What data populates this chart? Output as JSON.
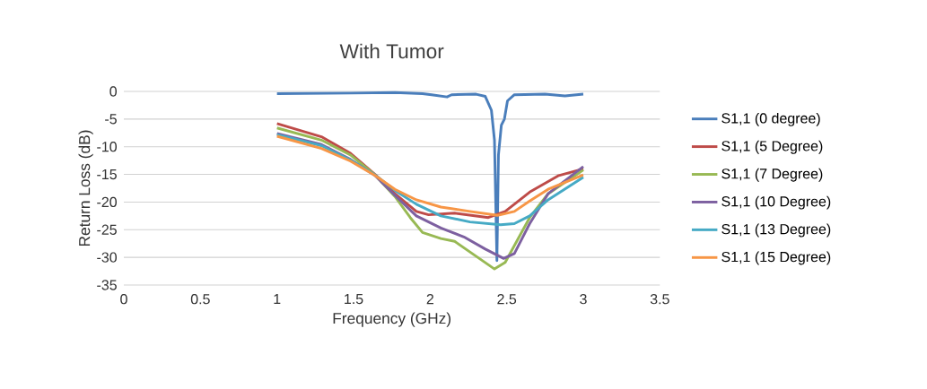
{
  "chart_data": {
    "type": "line",
    "title": "With Tumor",
    "xlabel": "Frequency (GHz)",
    "ylabel": "Return Loss (dB)",
    "xlim": [
      0,
      3.5
    ],
    "xticks": [
      0,
      0.5,
      1,
      1.5,
      2,
      2.5,
      3,
      3.5
    ],
    "ylim": [
      -35,
      0
    ],
    "yticks": [
      0,
      -5,
      -10,
      -15,
      -20,
      -25,
      -30,
      -35
    ],
    "grid": "y",
    "legend": "right",
    "marker": "none",
    "line_style": "solid",
    "series": [
      {
        "name": "S1,1 (0 degree)",
        "color": "#4a7ebb",
        "x": [
          1,
          1.48,
          1.77,
          1.95,
          2.01,
          2.11,
          2.14,
          2.3,
          2.36,
          2.4,
          2.42,
          2.436,
          2.446,
          2.465,
          2.485,
          2.505,
          2.55,
          2.75,
          2.88,
          3
        ],
        "values": [
          -0.4,
          -0.3,
          -0.2,
          -0.4,
          -0.6,
          -1.0,
          -0.6,
          -0.5,
          -0.9,
          -3.4,
          -8.8,
          -30.6,
          -11.5,
          -6.1,
          -5,
          -1.7,
          -0.6,
          -0.5,
          -0.8,
          -0.5
        ]
      },
      {
        "name": "S1,1 (5 Degree)",
        "color": "#be4b48",
        "x": [
          1,
          1.29,
          1.48,
          1.64,
          1.77,
          1.91,
          1.99,
          2.16,
          2.38,
          2.49,
          2.65,
          2.84,
          3
        ],
        "values": [
          -5.8,
          -8.2,
          -11.2,
          -15,
          -18.5,
          -21.7,
          -22.3,
          -22,
          -22.8,
          -21.7,
          -18.2,
          -15.2,
          -14
        ]
      },
      {
        "name": "S1,1 (7 Degree)",
        "color": "#98b954",
        "x": [
          1,
          1.29,
          1.48,
          1.64,
          1.77,
          1.87,
          1.95,
          2.07,
          2.16,
          2.3,
          2.42,
          2.49,
          2.65,
          2.77,
          3
        ],
        "values": [
          -6.6,
          -8.8,
          -11.5,
          -15.1,
          -19,
          -22.8,
          -25.5,
          -26.6,
          -27.1,
          -29.8,
          -32.1,
          -30.9,
          -22.8,
          -18.5,
          -14.2
        ]
      },
      {
        "name": "S1,1 (10 Degree)",
        "color": "#7d60a0",
        "x": [
          1,
          1.29,
          1.48,
          1.64,
          1.77,
          1.91,
          2.07,
          2.22,
          2.36,
          2.48,
          2.55,
          2.65,
          2.77,
          3
        ],
        "values": [
          -7.6,
          -9.6,
          -12.3,
          -15.2,
          -18.8,
          -22.5,
          -24.7,
          -26.3,
          -28.5,
          -30.2,
          -29.3,
          -23.9,
          -18.5,
          -13.6
        ]
      },
      {
        "name": "S1,1 (13 Degree)",
        "color": "#46aac5",
        "x": [
          1,
          1.29,
          1.48,
          1.64,
          1.77,
          1.91,
          2.07,
          2.26,
          2.46,
          2.55,
          2.65,
          2.77,
          3
        ],
        "values": [
          -7.8,
          -9.8,
          -12.4,
          -15.1,
          -17.9,
          -20.4,
          -22.5,
          -23.6,
          -24.1,
          -23.9,
          -22.5,
          -19.6,
          -15.5
        ]
      },
      {
        "name": "S1,1 (15 Degree)",
        "color": "#f79646",
        "x": [
          1,
          1.29,
          1.48,
          1.64,
          1.77,
          1.91,
          2.07,
          2.26,
          2.44,
          2.55,
          2.65,
          2.77,
          3
        ],
        "values": [
          -8.1,
          -10.3,
          -12.6,
          -15.2,
          -17.7,
          -19.6,
          -20.9,
          -21.7,
          -22.4,
          -21.7,
          -19.8,
          -17.7,
          -15.1
        ]
      }
    ]
  }
}
